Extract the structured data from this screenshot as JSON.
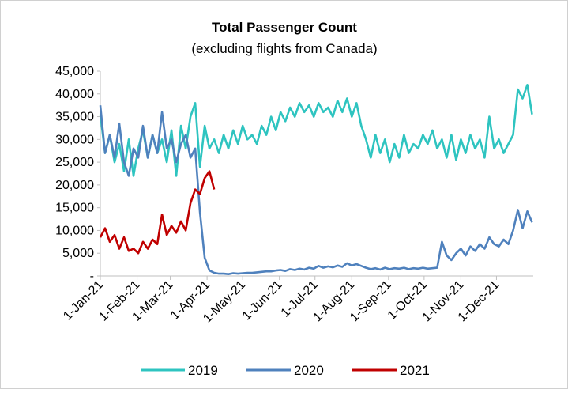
{
  "chart_data": {
    "type": "line",
    "title": "Total Passenger Count",
    "subtitle": "(excluding flights from Canada)",
    "x": [
      0,
      4,
      8,
      12,
      16,
      20,
      24,
      28,
      32,
      36,
      40,
      44,
      48,
      52,
      56,
      60,
      64,
      68,
      72,
      76,
      80,
      84,
      88,
      92,
      96,
      100,
      104,
      108,
      112,
      116,
      120,
      124,
      128,
      132,
      136,
      140,
      144,
      148,
      152,
      156,
      160,
      164,
      168,
      172,
      176,
      180,
      184,
      188,
      192,
      196,
      200,
      204,
      208,
      212,
      216,
      220,
      224,
      228,
      232,
      236,
      240,
      244,
      248,
      252,
      256,
      260,
      264,
      268,
      272,
      276,
      280,
      284,
      288,
      292,
      296,
      300,
      304,
      308,
      312,
      316,
      320,
      324,
      328,
      332,
      336,
      340,
      344,
      348,
      352,
      356,
      360,
      364
    ],
    "xlim": [
      0,
      365
    ],
    "xticks": [
      {
        "value": 0,
        "label": "1-Jan-21"
      },
      {
        "value": 31,
        "label": "1-Feb-21"
      },
      {
        "value": 59,
        "label": "1-Mar-21"
      },
      {
        "value": 90,
        "label": "1-Apr-21"
      },
      {
        "value": 120,
        "label": "1-May-21"
      },
      {
        "value": 151,
        "label": "1-Jun-21"
      },
      {
        "value": 181,
        "label": "1-Jul-21"
      },
      {
        "value": 212,
        "label": "1-Aug-21"
      },
      {
        "value": 243,
        "label": "1-Sep-21"
      },
      {
        "value": 273,
        "label": "1-Oct-21"
      },
      {
        "value": 304,
        "label": "1-Nov-21"
      },
      {
        "value": 334,
        "label": "1-Dec-21"
      }
    ],
    "ylim": [
      0,
      45000
    ],
    "yticks": [
      {
        "value": 0,
        "label": "-"
      },
      {
        "value": 5000,
        "label": "5,000"
      },
      {
        "value": 10000,
        "label": "10,000"
      },
      {
        "value": 15000,
        "label": "15,000"
      },
      {
        "value": 20000,
        "label": "20,000"
      },
      {
        "value": 25000,
        "label": "25,000"
      },
      {
        "value": 30000,
        "label": "30,000"
      },
      {
        "value": 35000,
        "label": "35,000"
      },
      {
        "value": 40000,
        "label": "40,000"
      },
      {
        "value": 45000,
        "label": "45,000"
      }
    ],
    "grid": false,
    "legend": "bottom",
    "series": [
      {
        "name": "2019",
        "color": "#2ec4c0",
        "values": [
          35500,
          27000,
          31000,
          25000,
          29000,
          23000,
          30000,
          22000,
          28000,
          32000,
          26000,
          31000,
          27000,
          30000,
          25000,
          32000,
          22000,
          33000,
          28000,
          35000,
          38000,
          24000,
          33000,
          28000,
          30000,
          27000,
          31000,
          28000,
          32000,
          29000,
          33000,
          30000,
          31000,
          29000,
          33000,
          31000,
          35000,
          32000,
          36000,
          34000,
          37000,
          35000,
          38000,
          36000,
          37500,
          35000,
          38000,
          36000,
          37000,
          35000,
          38500,
          36000,
          39000,
          35000,
          38000,
          33000,
          30000,
          26000,
          31000,
          27000,
          30000,
          25000,
          29000,
          26000,
          31000,
          27000,
          29000,
          28000,
          31000,
          29000,
          32000,
          28000,
          30000,
          26000,
          31000,
          25500,
          30000,
          27000,
          31000,
          28000,
          30000,
          26000,
          35000,
          28000,
          30000,
          27000,
          29000,
          31000,
          41000,
          39000,
          42000,
          35500
        ]
      },
      {
        "name": "2020",
        "color": "#4f81bd",
        "values": [
          37500,
          27000,
          31000,
          26000,
          33500,
          25000,
          22000,
          28000,
          26000,
          33000,
          26000,
          31000,
          27000,
          36000,
          28000,
          30000,
          25000,
          29000,
          31000,
          26000,
          28000,
          14000,
          4000,
          1200,
          700,
          500,
          500,
          400,
          600,
          500,
          600,
          700,
          700,
          800,
          900,
          1000,
          1000,
          1200,
          1300,
          1100,
          1500,
          1300,
          1600,
          1400,
          1800,
          1600,
          2200,
          1800,
          2100,
          1900,
          2300,
          2000,
          2800,
          2300,
          2600,
          2200,
          1800,
          1500,
          1700,
          1400,
          1800,
          1500,
          1700,
          1600,
          1800,
          1500,
          1700,
          1600,
          1800,
          1600,
          1700,
          1800,
          7500,
          4500,
          3500,
          5000,
          6000,
          4500,
          6500,
          5500,
          7000,
          6000,
          8500,
          7000,
          6500,
          8000,
          7000,
          10000,
          14500,
          10500,
          14200,
          11800
        ]
      },
      {
        "name": "2021",
        "color": "#c00000",
        "values": [
          8500,
          10500,
          7500,
          9000,
          6000,
          8500,
          5500,
          6000,
          5000,
          7500,
          6000,
          8000,
          7000,
          13500,
          9000,
          11000,
          9500,
          12000,
          10000,
          16000,
          19000,
          18000,
          21500,
          23000,
          19000,
          null,
          null,
          null,
          null,
          null,
          null,
          null,
          null,
          null,
          null,
          null,
          null,
          null,
          null,
          null,
          null,
          null,
          null,
          null,
          null,
          null,
          null,
          null,
          null,
          null,
          null,
          null,
          null,
          null,
          null,
          null,
          null,
          null,
          null,
          null,
          null,
          null,
          null,
          null,
          null,
          null,
          null,
          null,
          null,
          null,
          null,
          null,
          null,
          null,
          null,
          null,
          null,
          null,
          null,
          null,
          null,
          null,
          null,
          null,
          null,
          null,
          null,
          null,
          null,
          null,
          null,
          null
        ]
      }
    ]
  }
}
